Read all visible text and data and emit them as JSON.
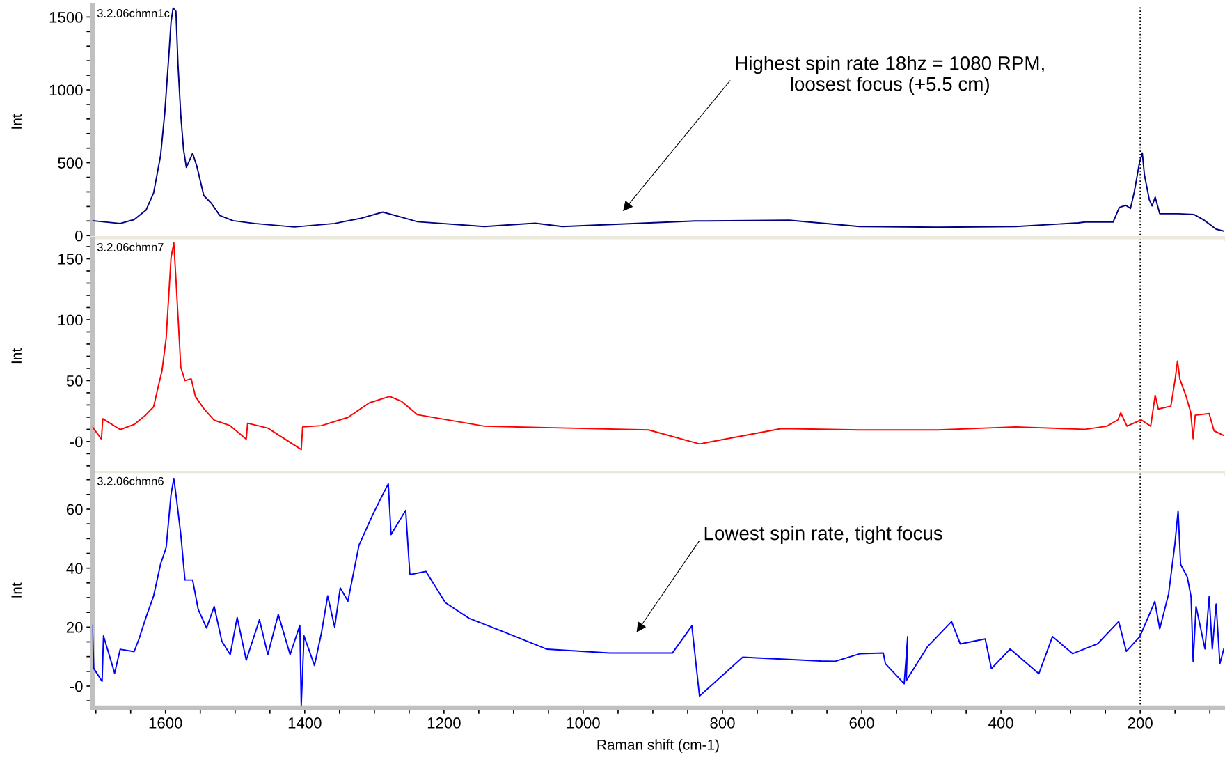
{
  "chart_data": [
    {
      "type": "line",
      "title": "3.2.06chmn1c",
      "ylabel": "Int",
      "xlim": [
        1705,
        80
      ],
      "ylim": [
        -20,
        1580
      ],
      "tick_labels": "y",
      "yticks": [
        0,
        {
          "value": 100,
          "label": null
        },
        {
          "value": 200,
          "label": null
        },
        {
          "value": 300,
          "label": null
        },
        {
          "value": 400,
          "label": null
        },
        500,
        {
          "value": 600,
          "label": null
        },
        {
          "value": 700,
          "label": null
        },
        {
          "value": 800,
          "label": null
        },
        {
          "value": 900,
          "label": null
        },
        1000,
        {
          "value": 1100,
          "label": null
        },
        {
          "value": 1200,
          "label": null
        },
        {
          "value": 1300,
          "label": null
        },
        {
          "value": 1400,
          "label": null
        },
        1500
      ],
      "ref_lines": [
        {
          "axis": "x",
          "value": 200,
          "label": null,
          "color": "#000000",
          "line_style": "dotted"
        }
      ],
      "annotations": [
        "Highest spin rate 18hz = 1080 RPM,\nloosest focus (+5.5 cm)"
      ],
      "series": [
        {
          "color": "#000080",
          "x": [
            1705,
            1665,
            1645,
            1628,
            1617,
            1607,
            1601,
            1595,
            1592,
            1589,
            1585,
            1582,
            1578,
            1574,
            1570,
            1561,
            1555,
            1545,
            1534,
            1522,
            1503,
            1472,
            1415,
            1357,
            1319,
            1288,
            1261,
            1238,
            1142,
            1069,
            1030,
            839,
            704,
            603,
            491,
            379,
            289,
            279,
            239,
            230,
            221,
            214,
            208.5,
            201,
            197,
            194,
            187,
            183,
            178.5,
            172,
            145,
            123,
            109,
            91,
            80
          ],
          "values": [
            102,
            83,
            110,
            174,
            293,
            550,
            843,
            1247,
            1467,
            1562,
            1540,
            1174,
            826,
            588,
            468,
            565,
            477,
            275,
            221,
            138,
            102,
            83,
            59,
            83,
            119,
            161,
            126,
            95,
            62,
            85,
            62,
            100,
            105,
            62,
            57,
            62,
            87,
            93,
            93,
            193,
            208,
            187,
            300,
            503,
            567,
            417,
            247,
            204,
            264,
            150,
            150,
            145,
            108,
            44,
            31
          ]
        }
      ]
    },
    {
      "type": "line",
      "title": "3.2.06chmn7",
      "ylabel": "Int",
      "xlim": [
        1705,
        80
      ],
      "ylim": [
        -26,
        166
      ],
      "tick_labels": "y",
      "yticks": [
        {
          "value": -20,
          "label": null
        },
        {
          "value": -10,
          "label": null
        },
        {
          "value": 0,
          "label": "-0"
        },
        {
          "value": 10,
          "label": null
        },
        {
          "value": 20,
          "label": null
        },
        {
          "value": 30,
          "label": null
        },
        {
          "value": 40,
          "label": null
        },
        50,
        {
          "value": 60,
          "label": null
        },
        {
          "value": 70,
          "label": null
        },
        {
          "value": 80,
          "label": null
        },
        {
          "value": 90,
          "label": null
        },
        100,
        {
          "value": 110,
          "label": null
        },
        {
          "value": 120,
          "label": null
        },
        {
          "value": 130,
          "label": null
        },
        {
          "value": 140,
          "label": null
        },
        150,
        {
          "value": 160,
          "label": null
        }
      ],
      "ref_lines": [
        {
          "axis": "x",
          "value": 200,
          "label": null,
          "color": "#000000",
          "line_style": "dotted"
        }
      ],
      "series": [
        {
          "color": "#ff0000",
          "x": [
            1705,
            1692,
            1690,
            1665,
            1645,
            1628,
            1617,
            1611,
            1605,
            1599,
            1595,
            1592,
            1588,
            1585,
            1582,
            1578,
            1572,
            1563,
            1557,
            1545,
            1530,
            1507,
            1484,
            1482,
            1453,
            1405,
            1403,
            1376,
            1338,
            1307,
            1278,
            1261,
            1238,
            1142,
            906,
            833,
            715,
            603,
            491,
            379,
            279,
            248,
            232,
            228,
            219,
            198.6,
            185,
            178.5,
            174,
            156,
            149.6,
            146.5,
            143,
            134,
            127.5,
            124,
            121,
            101,
            94,
            80
          ],
          "values": [
            12,
            2,
            18.7,
            9.8,
            14,
            22,
            28.5,
            43.7,
            58,
            85,
            122.6,
            151,
            163,
            133.7,
            103,
            61,
            50,
            51.4,
            37,
            27,
            17.5,
            13,
            2,
            15,
            11,
            -6.6,
            12,
            13,
            19.8,
            31.8,
            37,
            33,
            22,
            12.6,
            9.5,
            -2,
            10.7,
            9.5,
            9.5,
            12,
            10,
            12.6,
            17.8,
            23.6,
            12.6,
            17.8,
            12.6,
            38,
            26.7,
            29,
            52,
            66,
            51,
            37,
            24,
            2.4,
            21.6,
            23,
            8.8,
            5
          ]
        }
      ]
    },
    {
      "type": "line",
      "title": "3.2.06chmn6",
      "ylabel": "Int",
      "xlabel": "Raman shift (cm-1)",
      "xlim": [
        1705,
        80
      ],
      "ylim": [
        -7.4,
        72.2
      ],
      "xticks": [
        {
          "value": 1700,
          "label": null
        },
        {
          "value": 1650,
          "label": null
        },
        1600,
        {
          "value": 1550,
          "label": null
        },
        {
          "value": 1500,
          "label": null
        },
        {
          "value": 1450,
          "label": null
        },
        1400,
        {
          "value": 1350,
          "label": null
        },
        {
          "value": 1300,
          "label": null
        },
        {
          "value": 1250,
          "label": null
        },
        1200,
        {
          "value": 1150,
          "label": null
        },
        {
          "value": 1100,
          "label": null
        },
        {
          "value": 1050,
          "label": null
        },
        1000,
        {
          "value": 950,
          "label": null
        },
        {
          "value": 900,
          "label": null
        },
        {
          "value": 850,
          "label": null
        },
        800,
        {
          "value": 750,
          "label": null
        },
        {
          "value": 700,
          "label": null
        },
        {
          "value": 650,
          "label": null
        },
        600,
        {
          "value": 550,
          "label": null
        },
        {
          "value": 500,
          "label": null
        },
        {
          "value": 450,
          "label": null
        },
        400,
        {
          "value": 350,
          "label": null
        },
        {
          "value": 300,
          "label": null
        },
        {
          "value": 250,
          "label": null
        },
        200,
        {
          "value": 150,
          "label": null
        },
        {
          "value": 100,
          "label": null
        }
      ],
      "yticks": [
        {
          "value": -5,
          "label": null
        },
        {
          "value": 0,
          "label": "-0"
        },
        {
          "value": 5,
          "label": null
        },
        {
          "value": 10,
          "label": null
        },
        {
          "value": 15,
          "label": null
        },
        20,
        {
          "value": 25,
          "label": null
        },
        {
          "value": 30,
          "label": null
        },
        {
          "value": 35,
          "label": null
        },
        40,
        {
          "value": 45,
          "label": null
        },
        {
          "value": 50,
          "label": null
        },
        {
          "value": 55,
          "label": null
        },
        60,
        {
          "value": 65,
          "label": null
        },
        {
          "value": 70,
          "label": null
        }
      ],
      "ref_lines": [
        {
          "axis": "x",
          "value": 200,
          "label": null,
          "color": "#000000",
          "line_style": "dotted"
        }
      ],
      "annotations": [
        "Lowest spin rate, tight focus"
      ],
      "series": [
        {
          "color": "#0000ff",
          "x": [
            1705,
            1703,
            1691,
            1689,
            1673,
            1665,
            1645,
            1638,
            1628,
            1617,
            1607,
            1599,
            1592,
            1588,
            1584,
            1578,
            1572,
            1561,
            1553,
            1541,
            1530,
            1519,
            1507,
            1497,
            1484,
            1465,
            1453,
            1438,
            1421,
            1407,
            1405,
            1401,
            1386,
            1376,
            1367,
            1357,
            1349,
            1338,
            1322,
            1303,
            1290,
            1280,
            1276,
            1255,
            1249,
            1226,
            1198,
            1164,
            1108,
            1052,
            962,
            872,
            844,
            833,
            771,
            659,
            638,
            602,
            569,
            566,
            539,
            534,
            536,
            505,
            471,
            458.5,
            422.6,
            413.7,
            386.8,
            345.6,
            326,
            297,
            261.5,
            231,
            220,
            200.5,
            179,
            172,
            159.3,
            150.3,
            145.6,
            142,
            132.4,
            127,
            124,
            119.8,
            107,
            101,
            96.5,
            91,
            85.6,
            80
          ],
          "values": [
            20.6,
            6,
            1.6,
            17,
            4.4,
            12.5,
            11.7,
            16,
            23.3,
            30.6,
            41.4,
            47,
            65,
            70.4,
            63.2,
            51.4,
            36,
            36,
            26,
            19.7,
            27,
            15.2,
            10.7,
            23.3,
            8.8,
            22.5,
            10.7,
            24.3,
            10.7,
            20.6,
            -6.5,
            17,
            7,
            18,
            30.6,
            20,
            33.3,
            28.8,
            47.8,
            57.8,
            64,
            68.6,
            51.4,
            59.6,
            37.8,
            38.9,
            28.3,
            23,
            17.8,
            12.5,
            11.2,
            11.2,
            20.4,
            -3.4,
            9.8,
            8.5,
            8.4,
            11,
            11.2,
            7.6,
            0.8,
            16.8,
            1.9,
            13.5,
            21.9,
            14.3,
            16,
            5.9,
            12.6,
            4.2,
            16.8,
            11,
            14.3,
            21.9,
            11.8,
            16.8,
            28.7,
            19.4,
            31.2,
            48,
            59.4,
            41.3,
            37,
            30.3,
            8.4,
            27,
            12.6,
            30.3,
            12.6,
            27.8,
            7.6,
            12.6
          ]
        }
      ]
    }
  ]
}
